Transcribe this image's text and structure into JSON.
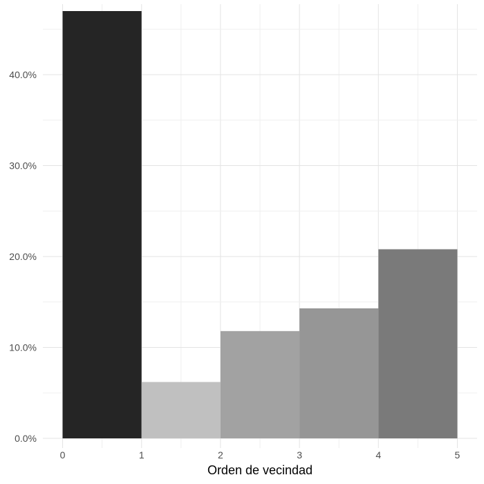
{
  "chart_data": {
    "type": "bar",
    "title": "",
    "xlabel": "Orden de vecindad",
    "ylabel": "",
    "bins": [
      {
        "x0": 0,
        "x1": 1,
        "value": 47.0
      },
      {
        "x0": 1,
        "x1": 2,
        "value": 6.2
      },
      {
        "x0": 2,
        "x1": 3,
        "value": 11.8
      },
      {
        "x0": 3,
        "x1": 4,
        "value": 14.3
      },
      {
        "x0": 4,
        "x1": 5,
        "value": 20.8
      }
    ],
    "xlim": [
      -0.25,
      5.25
    ],
    "ylim": [
      0,
      47.0
    ],
    "x_ticks": [
      0,
      1,
      2,
      3,
      4,
      5
    ],
    "x_tick_labels": [
      "0",
      "1",
      "2",
      "3",
      "4",
      "5"
    ],
    "y_ticks": [
      0,
      10,
      20,
      30,
      40
    ],
    "y_tick_labels": [
      "0.0%",
      "10.0%",
      "20.0%",
      "30.0%",
      "40.0%"
    ],
    "grid": true,
    "colors": {
      "bars": [
        "#252525",
        "#c0c0c0",
        "#a2a2a2",
        "#969696",
        "#7a7a7a"
      ],
      "grid_major": "#e3e3e3",
      "grid_minor": "#efefef"
    }
  }
}
